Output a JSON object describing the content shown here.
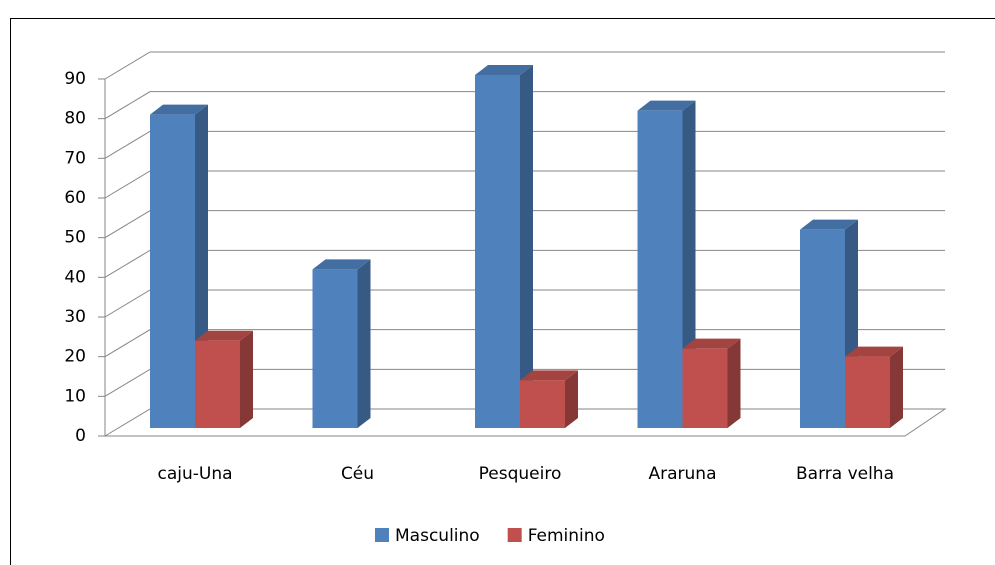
{
  "chart_data": {
    "type": "bar3d",
    "categories": [
      "caju-Una",
      "Céu",
      "Pesqueiro",
      "Araruna",
      "Barra velha"
    ],
    "series": [
      {
        "name": "Masculino",
        "color": "#4f81bd",
        "values": [
          79,
          40,
          89,
          80,
          50
        ]
      },
      {
        "name": "Feminino",
        "color": "#c0504d",
        "values": [
          22,
          0,
          12,
          20,
          18
        ]
      }
    ],
    "ylim": [
      0,
      90
    ],
    "yticks": [
      0,
      10,
      20,
      30,
      40,
      50,
      60,
      70,
      80,
      90
    ],
    "grid": true,
    "legend": "bottom"
  }
}
